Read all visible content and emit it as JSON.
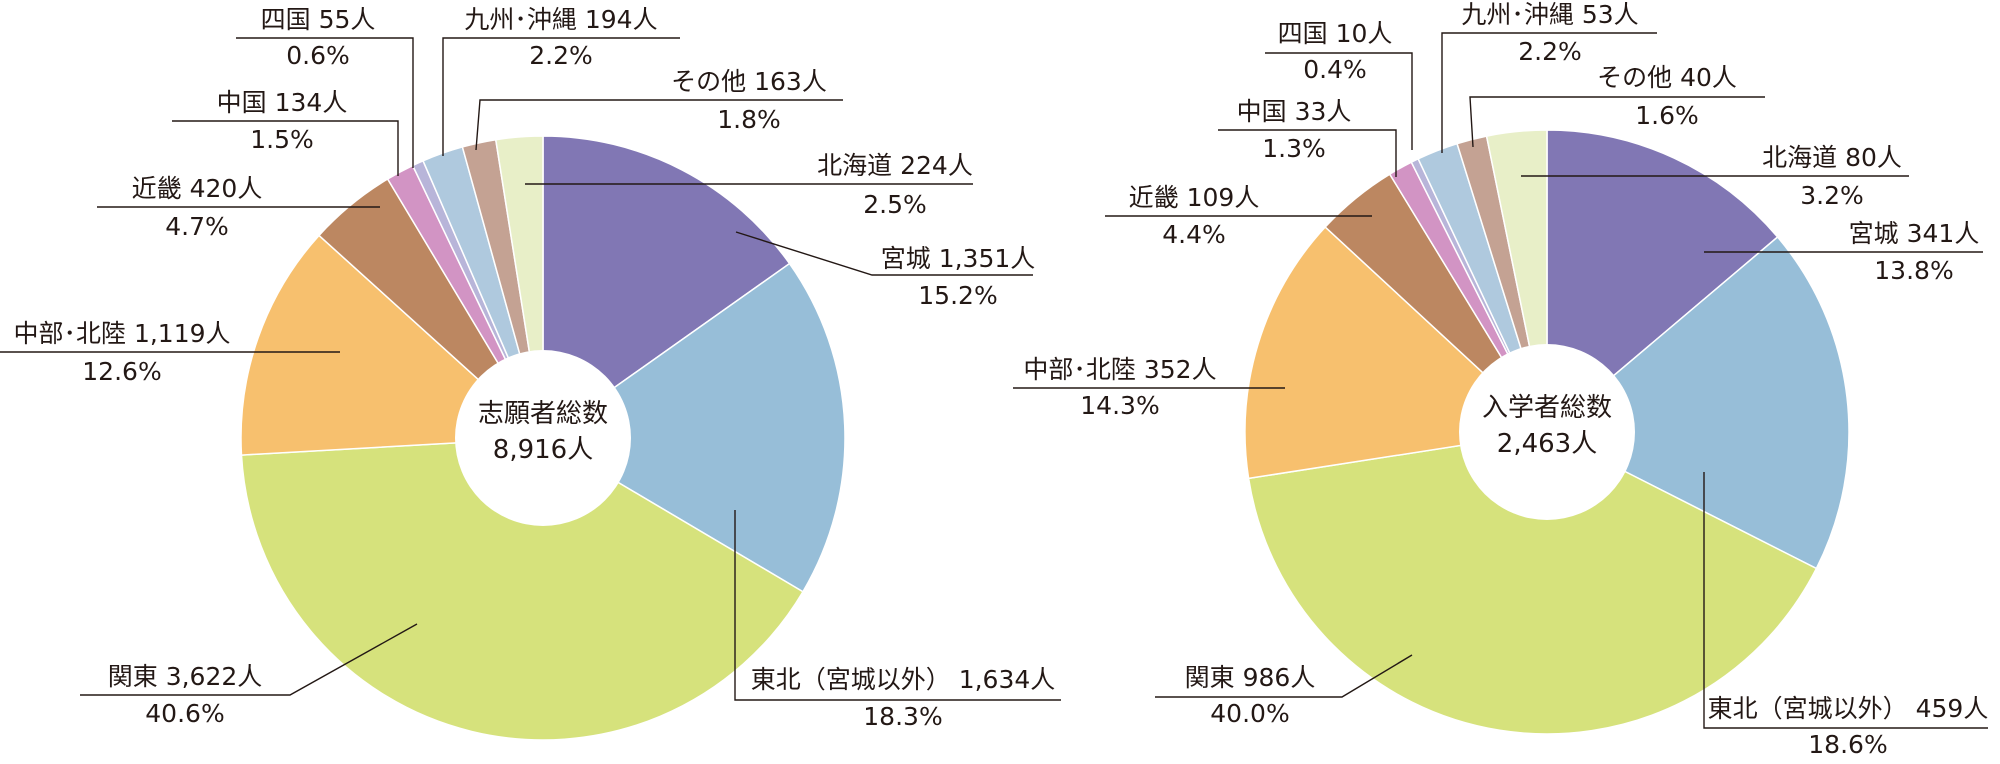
{
  "chart_data": [
    {
      "type": "pie",
      "center_label": {
        "line1": "志願者総数",
        "line2": "8,916人"
      },
      "slices": [
        {
          "name": "北海道",
          "count": "224人",
          "pct": "2.5%",
          "value": 2.5,
          "color": "#E8EFC8"
        },
        {
          "name": "宮城",
          "count": "1,351人",
          "pct": "15.2%",
          "value": 15.2,
          "color": "#8177B4"
        },
        {
          "name": "東北（宮城以外）",
          "count": "1,634人",
          "pct": "18.3%",
          "value": 18.3,
          "color": "#97BED8"
        },
        {
          "name": "関東",
          "count": "3,622人",
          "pct": "40.6%",
          "value": 40.6,
          "color": "#D6E27C"
        },
        {
          "name": "中部･北陸",
          "count": "1,119人",
          "pct": "12.6%",
          "value": 12.6,
          "color": "#F7C06E"
        },
        {
          "name": "近畿",
          "count": "420人",
          "pct": "4.7%",
          "value": 4.7,
          "color": "#BC8761"
        },
        {
          "name": "中国",
          "count": "134人",
          "pct": "1.5%",
          "value": 1.5,
          "color": "#D294C4"
        },
        {
          "name": "四国",
          "count": "55人",
          "pct": "0.6%",
          "value": 0.6,
          "color": "#B8B5D9"
        },
        {
          "name": "九州･沖縄",
          "count": "194人",
          "pct": "2.2%",
          "value": 2.2,
          "color": "#AFC9DE"
        },
        {
          "name": "その他",
          "count": "163人",
          "pct": "1.8%",
          "value": 1.8,
          "color": "#C4A293"
        }
      ]
    },
    {
      "type": "pie",
      "center_label": {
        "line1": "入学者総数",
        "line2": "2,463人"
      },
      "slices": [
        {
          "name": "北海道",
          "count": "80人",
          "pct": "3.2%",
          "value": 3.2,
          "color": "#E8EFC8"
        },
        {
          "name": "宮城",
          "count": "341人",
          "pct": "13.8%",
          "value": 13.8,
          "color": "#8177B4"
        },
        {
          "name": "東北（宮城以外）",
          "count": "459人",
          "pct": "18.6%",
          "value": 18.6,
          "color": "#97BED8"
        },
        {
          "name": "関東",
          "count": "986人",
          "pct": "40.0%",
          "value": 40.0,
          "color": "#D6E27C"
        },
        {
          "name": "中部･北陸",
          "count": "352人",
          "pct": "14.3%",
          "value": 14.3,
          "color": "#F7C06E"
        },
        {
          "name": "近畿",
          "count": "109人",
          "pct": "4.4%",
          "value": 4.4,
          "color": "#BC8761"
        },
        {
          "name": "中国",
          "count": "33人",
          "pct": "1.3%",
          "value": 1.3,
          "color": "#D294C4"
        },
        {
          "name": "四国",
          "count": "10人",
          "pct": "0.4%",
          "value": 0.4,
          "color": "#B8B5D9"
        },
        {
          "name": "九州･沖縄",
          "count": "53人",
          "pct": "2.2%",
          "value": 2.2,
          "color": "#AFC9DE"
        },
        {
          "name": "その他",
          "count": "40人",
          "pct": "1.6%",
          "value": 1.6,
          "color": "#C4A293"
        }
      ]
    }
  ]
}
